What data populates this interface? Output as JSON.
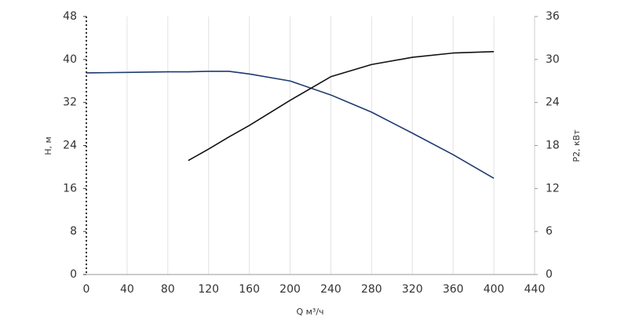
{
  "chart_data": {
    "type": "line",
    "x_label": "Q м³/ч",
    "y_label": "H, м",
    "y2_label": "P2, кВт",
    "x": [
      0,
      40,
      80,
      100,
      120,
      140,
      160,
      200,
      240,
      280,
      320,
      360,
      400
    ],
    "series": [
      {
        "name": "H",
        "color": "#1f3a70",
        "values": [
          37.5,
          37.6,
          37.7,
          37.7,
          37.8,
          37.8,
          37.3,
          36.0,
          33.4,
          30.2,
          26.3,
          22.3,
          17.9
        ]
      },
      {
        "name": "P2",
        "color": "#111111",
        "axis": "y2",
        "values": [
          null,
          null,
          null,
          15.9,
          17.5,
          19.2,
          20.8,
          24.3,
          27.6,
          29.3,
          30.3,
          30.9,
          31.1
        ]
      }
    ],
    "xlim": [
      0,
      440
    ],
    "xticks": [
      0,
      40,
      80,
      120,
      160,
      200,
      240,
      280,
      320,
      360,
      400,
      440
    ],
    "ylim": [
      0,
      48
    ],
    "yticks": [
      0,
      8,
      16,
      24,
      32,
      40,
      48
    ],
    "y2lim": [
      0,
      36
    ],
    "y2ticks": [
      0,
      6,
      12,
      18,
      24,
      30,
      36
    ],
    "grid": true
  }
}
